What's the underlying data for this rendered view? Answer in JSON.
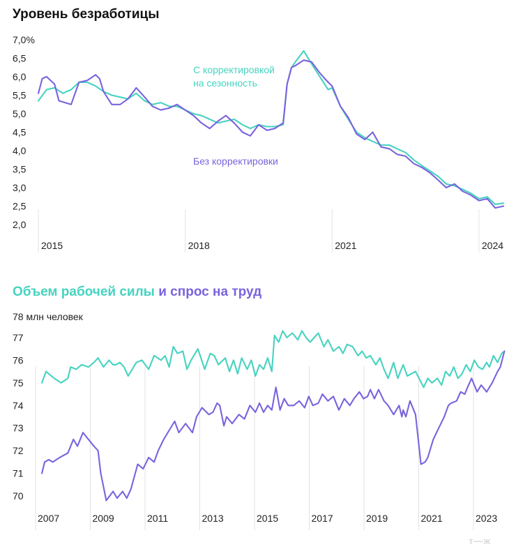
{
  "colors": {
    "teal": "#46d3c0",
    "purple": "#7a63dd",
    "grid": "#e2e2e2",
    "text": "#111111"
  },
  "logo": "т—ж",
  "chart_data": [
    {
      "type": "line",
      "title": "Уровень безработицы",
      "ylabel": "",
      "ylim": [
        2.0,
        7.0
      ],
      "y_ticks": [
        "7,0%",
        "6,5",
        "6,0",
        "5,5",
        "5,0",
        "4,5",
        "4,0",
        "3,5",
        "3,0",
        "2,5",
        "2,0"
      ],
      "x_ticks": [
        "2015",
        "2018",
        "2021",
        "2024"
      ],
      "xlim": [
        2015.0,
        2024.6
      ],
      "series": [
        {
          "name": "С корректировкой на сезонность",
          "label_lines": [
            "С корректировкой",
            "на сезонность"
          ],
          "color": "#46d3c0",
          "x": [
            2015.0,
            2015.17,
            2015.33,
            2015.5,
            2015.67,
            2015.83,
            2016.0,
            2016.17,
            2016.33,
            2016.5,
            2016.67,
            2016.83,
            2017.0,
            2017.17,
            2017.33,
            2017.5,
            2017.67,
            2017.83,
            2018.0,
            2018.17,
            2018.33,
            2018.5,
            2018.67,
            2018.83,
            2019.0,
            2019.17,
            2019.33,
            2019.5,
            2019.67,
            2019.83,
            2020.0,
            2020.08,
            2020.17,
            2020.25,
            2020.42,
            2020.58,
            2020.75,
            2020.92,
            2021.0,
            2021.17,
            2021.33,
            2021.5,
            2021.67,
            2021.83,
            2022.0,
            2022.17,
            2022.33,
            2022.5,
            2022.67,
            2022.83,
            2023.0,
            2023.17,
            2023.33,
            2023.5,
            2023.67,
            2023.83,
            2024.0,
            2024.17,
            2024.33,
            2024.5
          ],
          "values": [
            5.35,
            5.65,
            5.7,
            5.55,
            5.65,
            5.85,
            5.85,
            5.75,
            5.6,
            5.5,
            5.45,
            5.4,
            5.55,
            5.35,
            5.25,
            5.3,
            5.2,
            5.2,
            5.1,
            5.0,
            4.95,
            4.85,
            4.75,
            4.8,
            4.85,
            4.7,
            4.6,
            4.7,
            4.65,
            4.65,
            4.7,
            5.8,
            6.25,
            6.4,
            6.7,
            6.35,
            6.0,
            5.65,
            5.7,
            5.2,
            4.85,
            4.5,
            4.35,
            4.25,
            4.15,
            4.15,
            4.05,
            3.95,
            3.75,
            3.6,
            3.45,
            3.3,
            3.1,
            3.05,
            2.95,
            2.85,
            2.7,
            2.75,
            2.55,
            2.58
          ]
        },
        {
          "name": "Без корректировки",
          "label_lines": [
            "Без корректировки"
          ],
          "color": "#7a63dd",
          "x": [
            2015.0,
            2015.08,
            2015.17,
            2015.33,
            2015.42,
            2015.67,
            2015.83,
            2016.0,
            2016.17,
            2016.25,
            2016.33,
            2016.5,
            2016.67,
            2016.83,
            2017.0,
            2017.17,
            2017.33,
            2017.5,
            2017.67,
            2017.83,
            2018.0,
            2018.17,
            2018.33,
            2018.5,
            2018.67,
            2018.83,
            2019.0,
            2019.17,
            2019.33,
            2019.5,
            2019.67,
            2019.83,
            2020.0,
            2020.08,
            2020.17,
            2020.25,
            2020.42,
            2020.58,
            2020.75,
            2020.92,
            2021.0,
            2021.17,
            2021.33,
            2021.5,
            2021.67,
            2021.83,
            2022.0,
            2022.17,
            2022.33,
            2022.5,
            2022.67,
            2022.83,
            2023.0,
            2023.17,
            2023.33,
            2023.5,
            2023.67,
            2023.83,
            2024.0,
            2024.17,
            2024.33,
            2024.5
          ],
          "values": [
            5.55,
            5.95,
            6.0,
            5.8,
            5.35,
            5.25,
            5.85,
            5.9,
            6.05,
            5.95,
            5.6,
            5.25,
            5.25,
            5.4,
            5.7,
            5.45,
            5.2,
            5.1,
            5.15,
            5.25,
            5.1,
            4.95,
            4.75,
            4.6,
            4.8,
            4.95,
            4.75,
            4.5,
            4.4,
            4.7,
            4.55,
            4.6,
            4.75,
            5.8,
            6.25,
            6.3,
            6.45,
            6.4,
            6.1,
            5.85,
            5.75,
            5.2,
            4.9,
            4.45,
            4.3,
            4.5,
            4.1,
            4.05,
            3.9,
            3.85,
            3.65,
            3.55,
            3.4,
            3.2,
            3.0,
            3.1,
            2.9,
            2.8,
            2.65,
            2.7,
            2.45,
            2.5
          ]
        }
      ]
    },
    {
      "type": "line",
      "title_parts": [
        {
          "text": "Объем рабочей силы",
          "color": "#46d3c0"
        },
        {
          "text": " и ",
          "color": "#7a63dd"
        },
        {
          "text": "спрос на труд",
          "color": "#7a63dd"
        }
      ],
      "ylabel": "78 млн человек",
      "ylim": [
        69.6,
        78.0
      ],
      "y_ticks": [
        "77",
        "76",
        "75",
        "74",
        "73",
        "72",
        "71",
        "70"
      ],
      "x_ticks": [
        "2007",
        "2009",
        "2011",
        "2013",
        "2015",
        "2017",
        "2019",
        "2021",
        "2023"
      ],
      "xlim": [
        2006.8,
        2023.8
      ],
      "series": [
        {
          "name": "Объем рабочей силы",
          "color": "#46d3c0",
          "x": [
            2006.85,
            2007.0,
            2007.3,
            2007.55,
            2007.8,
            2007.9,
            2008.1,
            2008.3,
            2008.55,
            2008.75,
            2008.9,
            2009.1,
            2009.3,
            2009.45,
            2009.55,
            2009.7,
            2009.85,
            2010.0,
            2010.3,
            2010.5,
            2010.75,
            2010.95,
            2011.2,
            2011.35,
            2011.5,
            2011.65,
            2011.8,
            2012.0,
            2012.15,
            2012.3,
            2012.55,
            2012.8,
            2013.0,
            2013.15,
            2013.3,
            2013.55,
            2013.7,
            2013.85,
            2014.0,
            2014.15,
            2014.35,
            2014.5,
            2014.65,
            2014.8,
            2014.95,
            2015.1,
            2015.25,
            2015.35,
            2015.5,
            2015.65,
            2015.8,
            2016.0,
            2016.2,
            2016.35,
            2016.5,
            2016.65,
            2016.8,
            2016.95,
            2017.15,
            2017.3,
            2017.5,
            2017.7,
            2017.85,
            2018.0,
            2018.2,
            2018.4,
            2018.55,
            2018.7,
            2018.85,
            2019.05,
            2019.2,
            2019.35,
            2019.5,
            2019.7,
            2019.85,
            2020.05,
            2020.2,
            2020.5,
            2020.8,
            2020.95,
            2021.1,
            2021.3,
            2021.45,
            2021.6,
            2021.75,
            2021.9,
            2022.05,
            2022.2,
            2022.35,
            2022.5,
            2022.65,
            2022.8,
            2022.95,
            2023.1,
            2023.2,
            2023.35,
            2023.5,
            2023.65,
            2023.75
          ],
          "values": [
            75.0,
            75.5,
            75.2,
            75.0,
            75.2,
            75.7,
            75.6,
            75.8,
            75.7,
            75.9,
            76.1,
            75.7,
            76.0,
            75.8,
            75.8,
            75.9,
            75.7,
            75.3,
            75.9,
            76.0,
            75.6,
            76.2,
            76.0,
            76.2,
            75.7,
            76.6,
            76.3,
            76.4,
            75.6,
            76.0,
            76.5,
            75.6,
            76.3,
            76.2,
            75.8,
            76.1,
            75.5,
            76.0,
            75.4,
            76.1,
            75.6,
            76.0,
            75.3,
            75.8,
            75.6,
            76.1,
            75.5,
            77.1,
            76.8,
            77.3,
            77.0,
            77.2,
            76.9,
            77.3,
            77.0,
            76.8,
            77.0,
            77.2,
            76.6,
            76.9,
            76.4,
            76.6,
            76.3,
            76.7,
            76.6,
            76.2,
            76.4,
            76.1,
            76.2,
            75.8,
            76.1,
            75.6,
            75.2,
            75.9,
            75.2,
            75.8,
            75.3,
            75.5,
            74.8,
            75.2,
            75.0,
            75.2,
            74.9,
            75.5,
            75.3,
            75.7,
            75.2,
            75.4,
            75.8,
            75.5,
            76.0,
            75.7,
            75.6,
            75.9,
            75.7,
            76.2,
            75.9,
            76.3,
            76.4
          ]
        },
        {
          "name": "Спрос на труд",
          "color": "#7a63dd",
          "x": [
            2006.85,
            2006.95,
            2007.1,
            2007.25,
            2007.5,
            2007.8,
            2008.0,
            2008.15,
            2008.35,
            2008.55,
            2008.75,
            2008.9,
            2009.0,
            2009.2,
            2009.45,
            2009.6,
            2009.8,
            2009.95,
            2010.1,
            2010.35,
            2010.55,
            2010.75,
            2010.95,
            2011.1,
            2011.3,
            2011.5,
            2011.7,
            2011.85,
            2012.1,
            2012.35,
            2012.5,
            2012.7,
            2012.95,
            2013.1,
            2013.25,
            2013.35,
            2013.5,
            2013.6,
            2013.8,
            2014.05,
            2014.25,
            2014.45,
            2014.65,
            2014.8,
            2014.95,
            2015.1,
            2015.25,
            2015.4,
            2015.55,
            2015.7,
            2015.85,
            2016.05,
            2016.25,
            2016.45,
            2016.6,
            2016.75,
            2016.95,
            2017.1,
            2017.3,
            2017.5,
            2017.7,
            2017.9,
            2018.1,
            2018.25,
            2018.45,
            2018.6,
            2018.75,
            2018.85,
            2019.0,
            2019.15,
            2019.35,
            2019.5,
            2019.7,
            2019.9,
            2020.0,
            2020.05,
            2020.15,
            2020.3,
            2020.5,
            2020.7,
            2020.85,
            2020.95,
            2021.15,
            2021.35,
            2021.55,
            2021.7,
            2021.8,
            2022.0,
            2022.15,
            2022.3,
            2022.4,
            2022.55,
            2022.75,
            2022.9,
            2023.1,
            2023.3,
            2023.5,
            2023.6,
            2023.75
          ],
          "values": [
            71.0,
            71.5,
            71.6,
            71.5,
            71.7,
            71.9,
            72.5,
            72.2,
            72.8,
            72.5,
            72.2,
            72.0,
            71.0,
            69.8,
            70.2,
            69.9,
            70.2,
            69.9,
            70.3,
            71.4,
            71.2,
            71.7,
            71.5,
            72.0,
            72.5,
            72.9,
            73.3,
            72.8,
            73.2,
            72.8,
            73.5,
            73.9,
            73.6,
            73.7,
            74.1,
            74.0,
            73.1,
            73.5,
            73.2,
            73.6,
            73.4,
            74.0,
            73.7,
            74.1,
            73.7,
            74.0,
            73.8,
            74.8,
            73.8,
            74.3,
            74.0,
            74.0,
            74.2,
            73.9,
            74.4,
            74.0,
            74.1,
            74.5,
            74.2,
            74.4,
            73.8,
            74.3,
            74.0,
            74.3,
            74.6,
            74.3,
            74.4,
            74.7,
            74.3,
            74.7,
            74.2,
            74.0,
            73.6,
            74.0,
            73.5,
            73.8,
            73.5,
            74.2,
            73.6,
            71.4,
            71.5,
            71.7,
            72.5,
            73.0,
            73.5,
            74.0,
            74.1,
            74.2,
            74.6,
            74.5,
            74.8,
            75.2,
            74.6,
            74.9,
            74.6,
            75.0,
            75.5,
            75.7,
            76.4
          ]
        }
      ]
    }
  ]
}
